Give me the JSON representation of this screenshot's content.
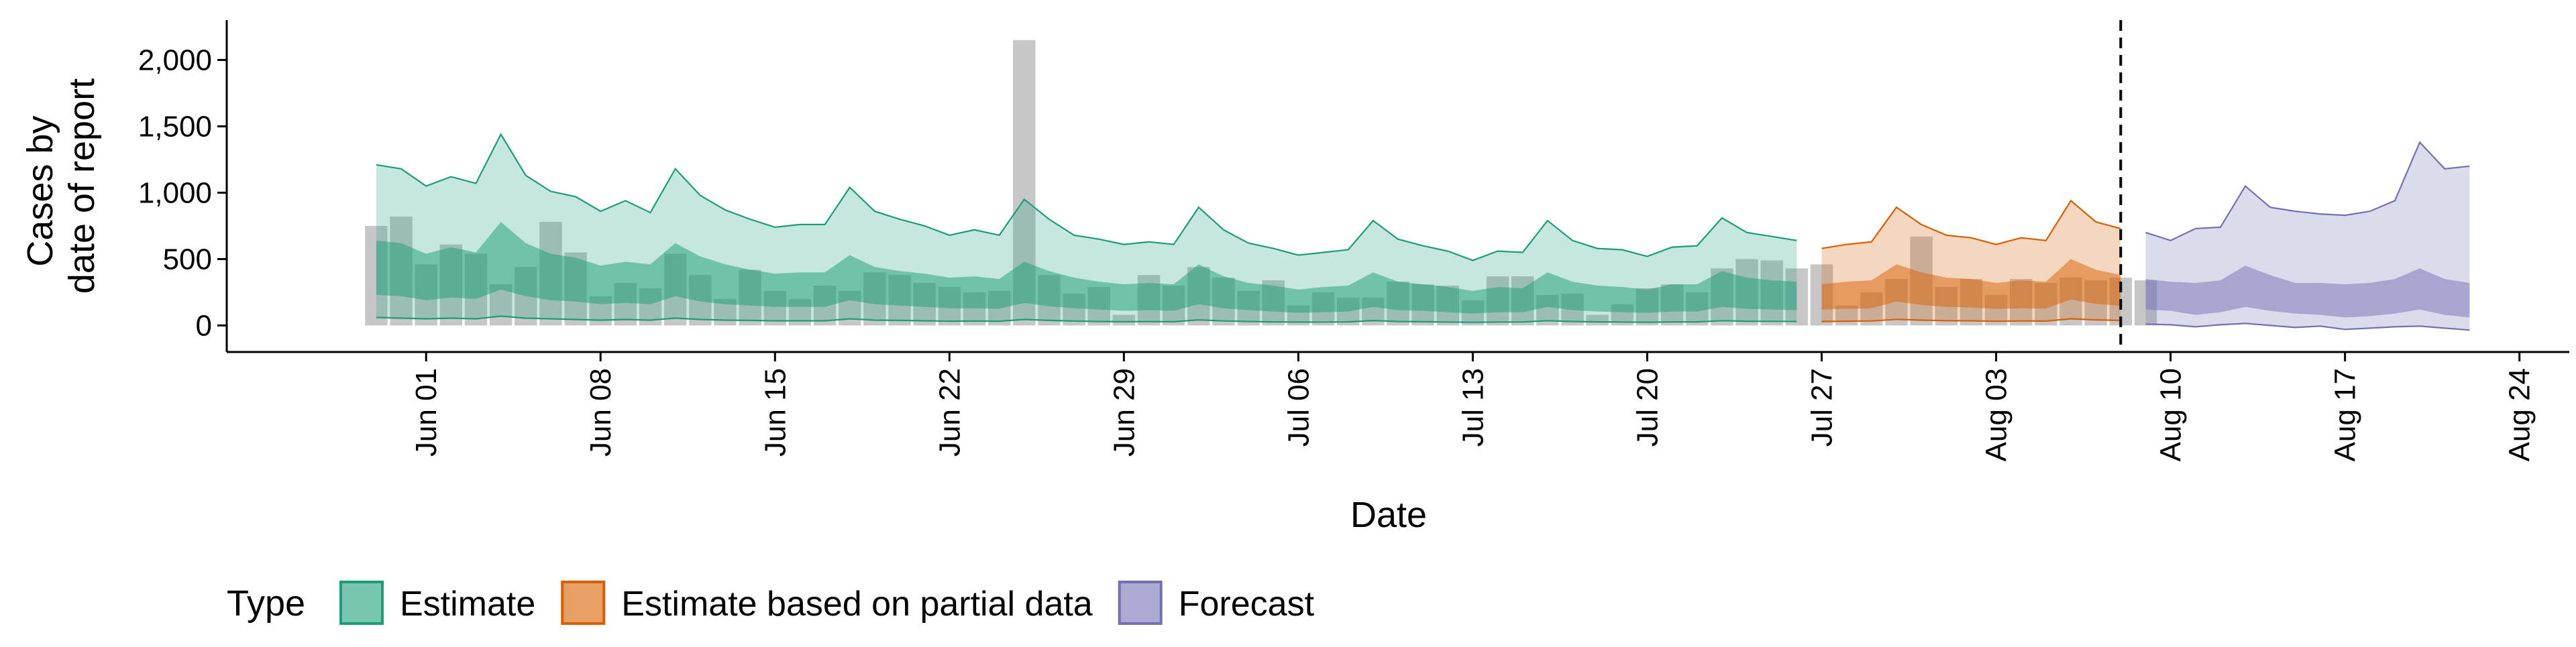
{
  "chart_data": {
    "type": "area",
    "xlabel": "Date",
    "ylabel": [
      "Cases by",
      "date of report"
    ],
    "ylim": [
      -200,
      2300
    ],
    "xlim": [
      "2021-05-24",
      "2021-08-26"
    ],
    "y_ticks": [
      {
        "value": 0,
        "label": "0"
      },
      {
        "value": 500,
        "label": "500"
      },
      {
        "value": 1000,
        "label": "1,000"
      },
      {
        "value": 1500,
        "label": "1,500"
      },
      {
        "value": 2000,
        "label": "2,000"
      }
    ],
    "x_ticks": [
      {
        "date": "2021-06-01",
        "label": "Jun 01"
      },
      {
        "date": "2021-06-08",
        "label": "Jun 08"
      },
      {
        "date": "2021-06-15",
        "label": "Jun 15"
      },
      {
        "date": "2021-06-22",
        "label": "Jun 22"
      },
      {
        "date": "2021-06-29",
        "label": "Jun 29"
      },
      {
        "date": "2021-07-06",
        "label": "Jul 06"
      },
      {
        "date": "2021-07-13",
        "label": "Jul 13"
      },
      {
        "date": "2021-07-20",
        "label": "Jul 20"
      },
      {
        "date": "2021-07-27",
        "label": "Jul 27"
      },
      {
        "date": "2021-08-03",
        "label": "Aug 03"
      },
      {
        "date": "2021-08-10",
        "label": "Aug 10"
      },
      {
        "date": "2021-08-17",
        "label": "Aug 17"
      },
      {
        "date": "2021-08-24",
        "label": "Aug 24"
      }
    ],
    "grid": false,
    "legend": {
      "title": "Type",
      "position": "bottom",
      "entries": [
        {
          "name": "Estimate",
          "fill": "#1b9e77",
          "stroke": "#1b9e77"
        },
        {
          "name": "Estimate based on partial data",
          "fill": "#d95f02",
          "stroke": "#d95f02"
        },
        {
          "name": "Forecast",
          "fill": "#7570b3",
          "stroke": "#7570b3"
        }
      ]
    },
    "vline": {
      "date": "2021-08-08",
      "style": "dashed"
    },
    "reported_cases": {
      "color": "#999999",
      "start_date": "2021-05-30",
      "values": [
        750,
        820,
        460,
        610,
        540,
        310,
        440,
        780,
        550,
        220,
        320,
        280,
        540,
        380,
        200,
        420,
        260,
        200,
        300,
        260,
        400,
        380,
        320,
        290,
        250,
        260,
        2150,
        380,
        240,
        290,
        80,
        380,
        300,
        440,
        360,
        260,
        340,
        150,
        250,
        210,
        210,
        330,
        310,
        300,
        190,
        370,
        370,
        230,
        240,
        80,
        160,
        280,
        310,
        250,
        430,
        500,
        490,
        430,
        460,
        150,
        250,
        350,
        670,
        290,
        350,
        230,
        350,
        320,
        360,
        340,
        360,
        340
      ]
    },
    "series": [
      {
        "name": "Estimate",
        "start_date": "2021-05-30",
        "color": "#1b9e77",
        "upper90": [
          1210,
          1180,
          1050,
          1120,
          1070,
          1440,
          1130,
          1010,
          970,
          860,
          940,
          850,
          1180,
          980,
          870,
          800,
          740,
          760,
          760,
          1040,
          860,
          800,
          750,
          680,
          720,
          680,
          950,
          800,
          680,
          650,
          610,
          630,
          610,
          890,
          720,
          620,
          580,
          530,
          550,
          570,
          790,
          650,
          600,
          560,
          490,
          560,
          550,
          790,
          640,
          580,
          570,
          520,
          590,
          600,
          810,
          700,
          670,
          640
        ],
        "upper50": [
          640,
          620,
          540,
          590,
          550,
          780,
          620,
          540,
          510,
          450,
          480,
          460,
          620,
          520,
          460,
          420,
          390,
          400,
          400,
          530,
          440,
          410,
          390,
          360,
          370,
          350,
          480,
          410,
          360,
          330,
          310,
          320,
          310,
          460,
          370,
          320,
          300,
          270,
          290,
          300,
          400,
          330,
          310,
          290,
          260,
          290,
          280,
          400,
          330,
          300,
          290,
          270,
          310,
          310,
          410,
          360,
          340,
          330
        ],
        "lower50": [
          230,
          220,
          190,
          210,
          200,
          270,
          220,
          190,
          180,
          160,
          170,
          160,
          220,
          180,
          160,
          150,
          140,
          140,
          140,
          190,
          160,
          150,
          140,
          130,
          130,
          125,
          170,
          145,
          130,
          120,
          110,
          115,
          110,
          160,
          130,
          115,
          105,
          95,
          100,
          105,
          140,
          115,
          110,
          100,
          90,
          100,
          100,
          140,
          115,
          105,
          100,
          95,
          105,
          105,
          140,
          125,
          120,
          115
        ],
        "lower90": [
          60,
          55,
          50,
          55,
          50,
          70,
          55,
          50,
          45,
          40,
          45,
          40,
          55,
          45,
          40,
          38,
          35,
          35,
          35,
          50,
          40,
          38,
          35,
          32,
          33,
          32,
          45,
          38,
          33,
          30,
          28,
          29,
          28,
          42,
          34,
          30,
          27,
          25,
          26,
          27,
          37,
          30,
          28,
          26,
          23,
          26,
          26,
          36,
          30,
          27,
          26,
          24,
          27,
          27,
          36,
          32,
          31,
          30
        ]
      },
      {
        "name": "Estimate based on partial data",
        "start_date": "2021-07-27",
        "color": "#d95f02",
        "upper90": [
          580,
          610,
          630,
          890,
          760,
          680,
          660,
          610,
          660,
          640,
          940,
          780,
          730
        ],
        "upper50": [
          310,
          330,
          340,
          460,
          400,
          360,
          350,
          320,
          340,
          330,
          500,
          420,
          380
        ],
        "lower50": [
          120,
          125,
          130,
          180,
          155,
          140,
          135,
          125,
          130,
          128,
          195,
          162,
          148
        ],
        "lower90": [
          30,
          32,
          34,
          46,
          40,
          36,
          35,
          32,
          34,
          33,
          50,
          42,
          38
        ]
      },
      {
        "name": "Forecast",
        "start_date": "2021-08-09",
        "color": "#7570b3",
        "upper90": [
          700,
          640,
          730,
          740,
          1050,
          890,
          860,
          840,
          830,
          860,
          940,
          1380,
          1180,
          1200
        ],
        "upper50": [
          350,
          330,
          320,
          340,
          450,
          380,
          320,
          320,
          310,
          320,
          350,
          430,
          350,
          320
        ],
        "lower50": [
          120,
          110,
          80,
          100,
          140,
          110,
          90,
          80,
          60,
          70,
          90,
          120,
          80,
          60
        ],
        "lower90": [
          10,
          5,
          -10,
          5,
          15,
          0,
          -15,
          -5,
          -30,
          -20,
          -10,
          -5,
          -20,
          -35
        ]
      }
    ]
  }
}
